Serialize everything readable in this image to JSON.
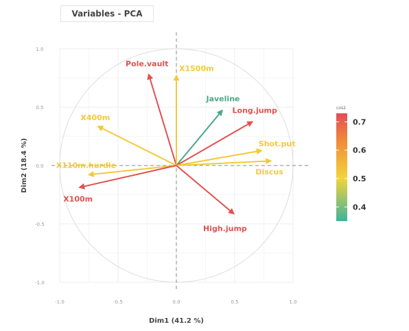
{
  "chart_data": {
    "type": "pca-variables",
    "title": "Variables - PCA",
    "xlabel": "Dim1 (41.2 %)",
    "ylabel": "Dim2 (18.4 %)",
    "xlim": [
      -1.0,
      1.0
    ],
    "ylim": [
      -1.0,
      1.0
    ],
    "xticks": [
      "-1.0",
      "-0.5",
      "0.0",
      "0.5",
      "1.0"
    ],
    "yticks": [
      "-1.0",
      "-0.5",
      "0.0",
      "0.5",
      "1.0"
    ],
    "grid": true,
    "legend": {
      "title": "cos2",
      "position": "right",
      "ticks": [
        0.4,
        0.5,
        0.6,
        0.7
      ],
      "range": [
        0.35,
        0.73
      ],
      "colors": [
        "#3fb39e",
        "#f3d43a",
        "#ef6d3c",
        "#e24c55"
      ]
    },
    "variables": [
      {
        "name": "Pole.vault",
        "x": -0.24,
        "y": 0.79,
        "cos2": 0.68,
        "color": "#e2504f"
      },
      {
        "name": "X1500m",
        "x": 0.0,
        "y": 0.78,
        "cos2": 0.52,
        "color": "#f3c93a"
      },
      {
        "name": "Javeline",
        "x": 0.4,
        "y": 0.48,
        "cos2": 0.38,
        "color": "#49a985"
      },
      {
        "name": "Long.jump",
        "x": 0.66,
        "y": 0.38,
        "cos2": 0.7,
        "color": "#e2504f"
      },
      {
        "name": "X400m",
        "x": -0.68,
        "y": 0.34,
        "cos2": 0.51,
        "color": "#f3c93a"
      },
      {
        "name": "Shot.put",
        "x": 0.74,
        "y": 0.13,
        "cos2": 0.55,
        "color": "#f3c93a"
      },
      {
        "name": "Discus",
        "x": 0.82,
        "y": 0.04,
        "cos2": 0.54,
        "color": "#f3c93a"
      },
      {
        "name": "X110m.hurdle",
        "x": -0.76,
        "y": -0.08,
        "cos2": 0.52,
        "color": "#f3c93a"
      },
      {
        "name": "X100m",
        "x": -0.84,
        "y": -0.19,
        "cos2": 0.69,
        "color": "#e2504f"
      },
      {
        "name": "High.jump",
        "x": 0.5,
        "y": -0.42,
        "cos2": 0.66,
        "color": "#e2504f"
      }
    ]
  }
}
